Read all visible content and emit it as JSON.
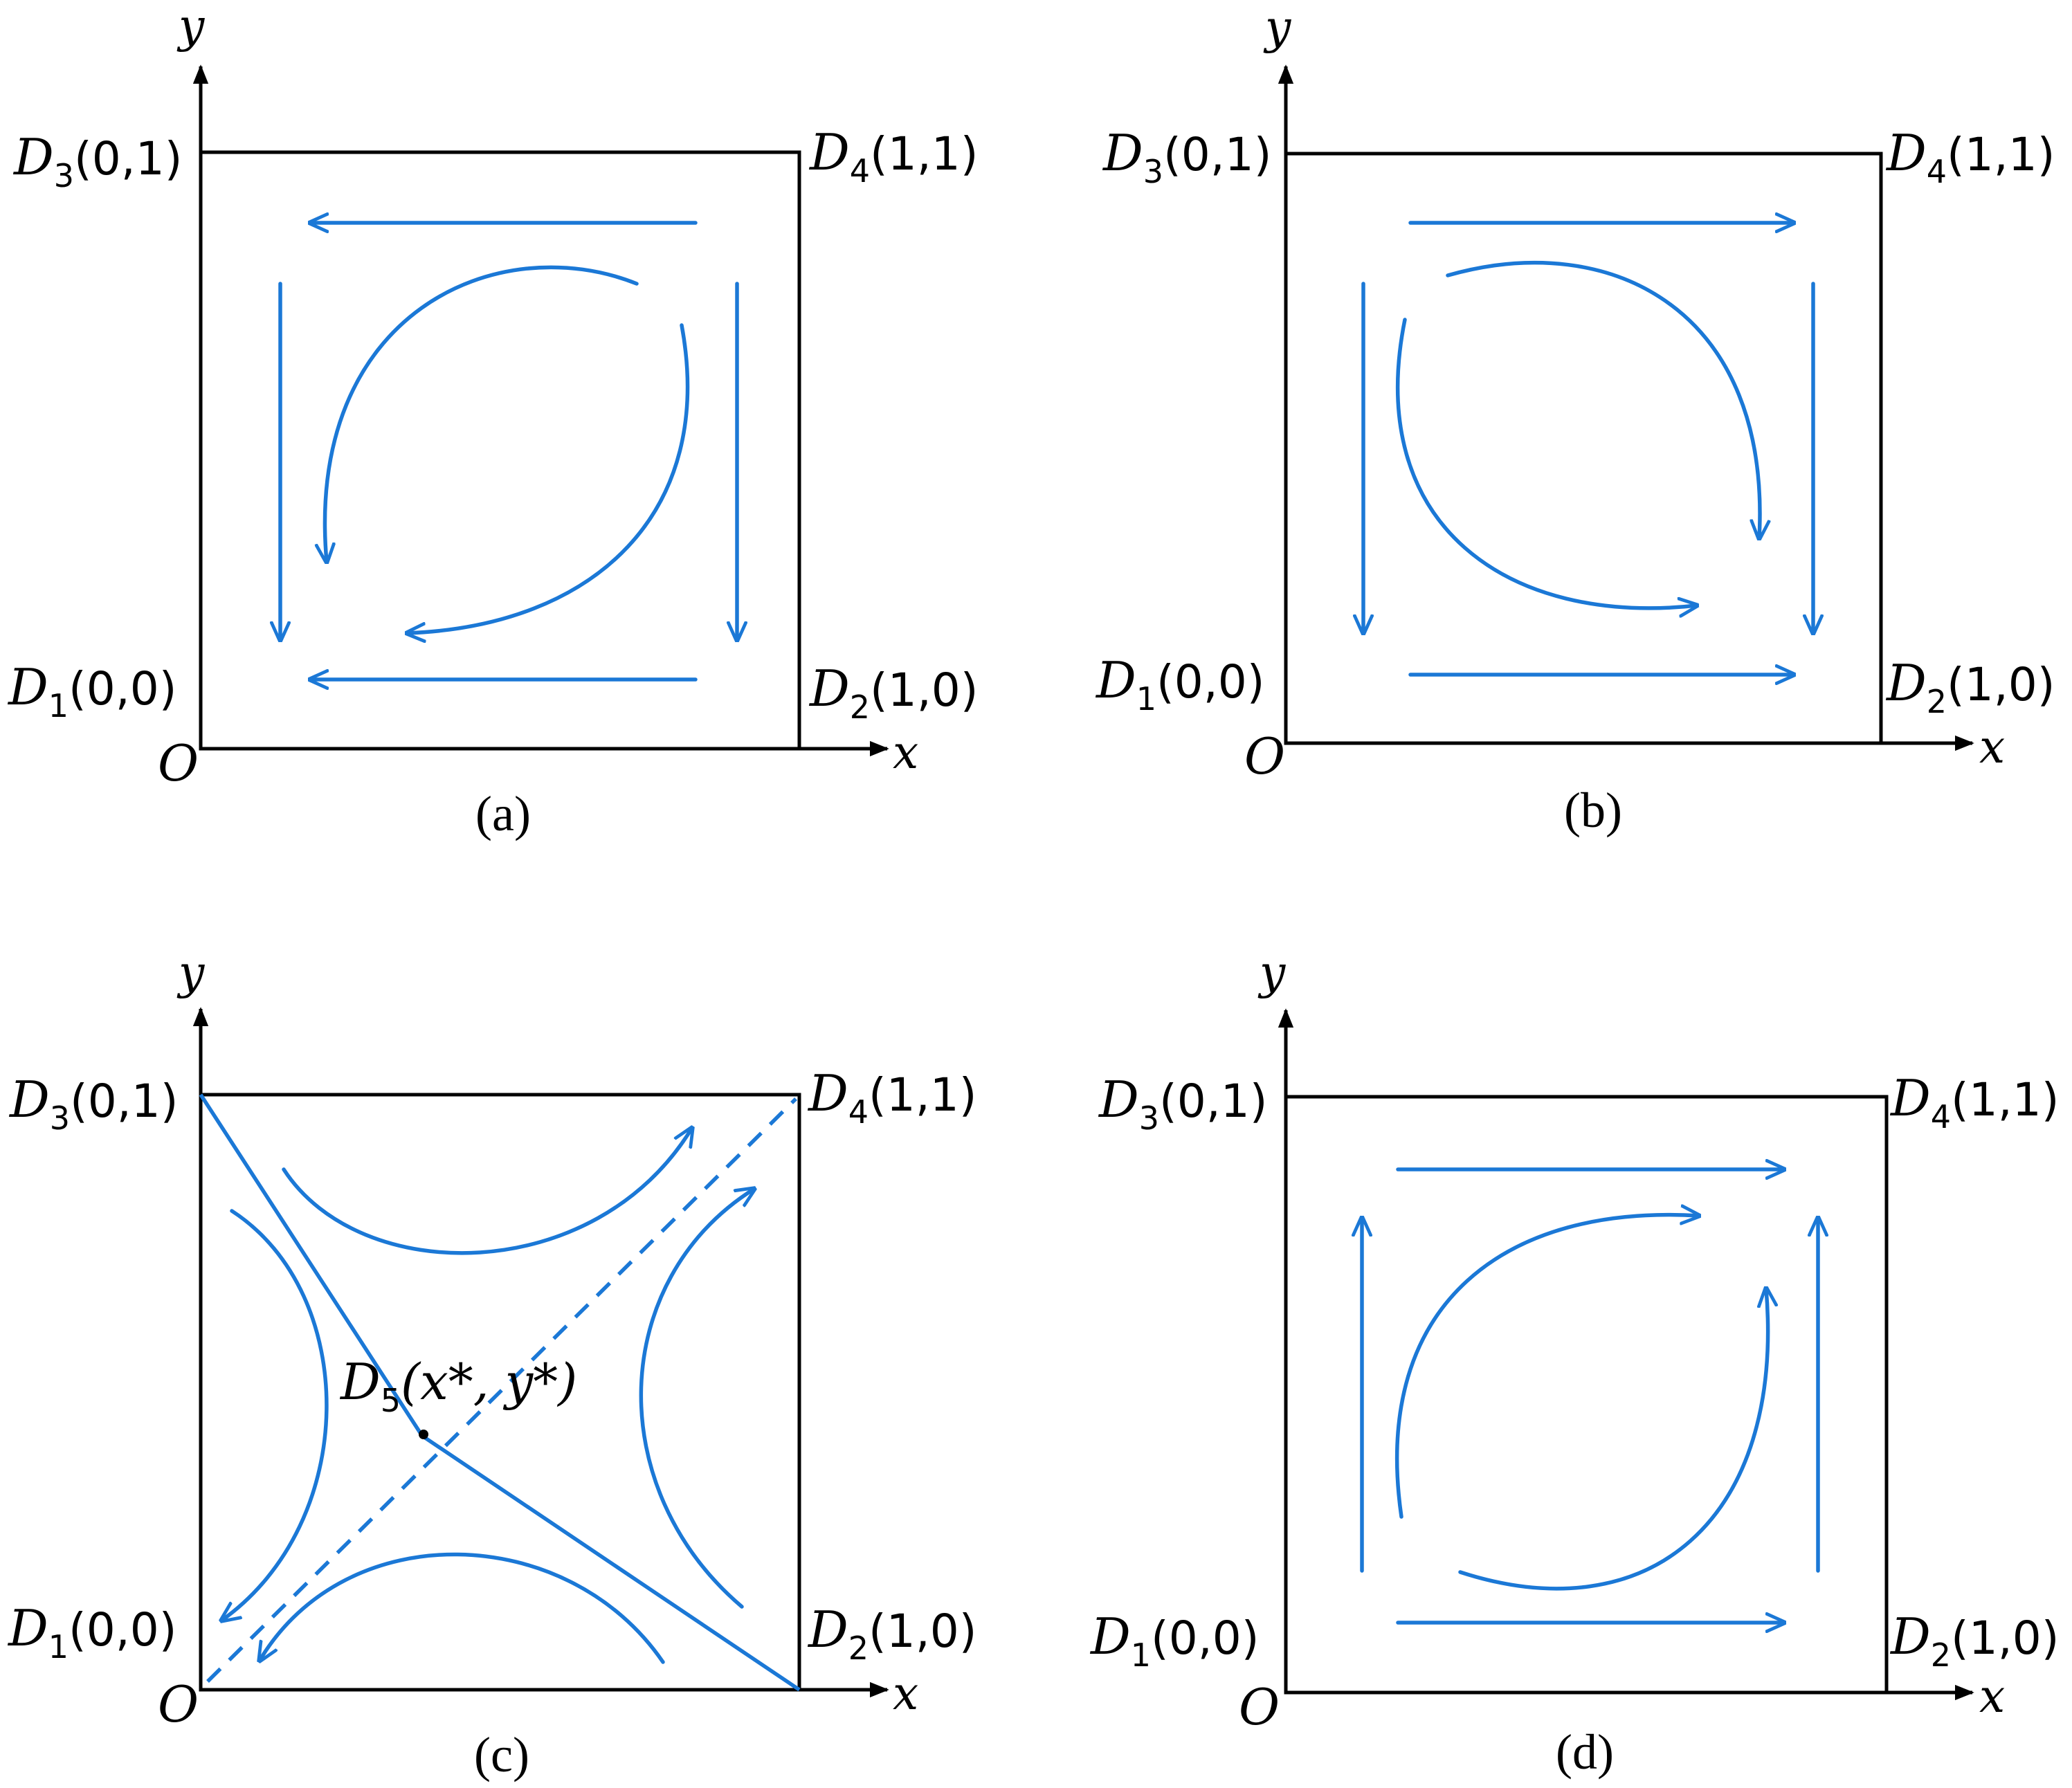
{
  "colors": {
    "flow": "#1b78d6",
    "frame": "#000000"
  },
  "axes": {
    "x": "x",
    "y": "y",
    "origin": "O"
  },
  "points": {
    "D1": {
      "letter": "D",
      "sub": "1",
      "coords": "(0,0)"
    },
    "D2": {
      "letter": "D",
      "sub": "2",
      "coords": "(1,0)"
    },
    "D3": {
      "letter": "D",
      "sub": "3",
      "coords": "(0,1)"
    },
    "D4": {
      "letter": "D",
      "sub": "4",
      "coords": "(1,1)"
    },
    "D5": {
      "letter": "D",
      "sub": "5",
      "coords": "(x*, y*)"
    }
  },
  "panels": [
    {
      "caption": "(a)",
      "flow": "counterclockwise"
    },
    {
      "caption": "(b)",
      "flow": "clockwise"
    },
    {
      "caption": "(c)",
      "flow": "saddle"
    },
    {
      "caption": "(d)",
      "flow": "clockwise"
    }
  ]
}
